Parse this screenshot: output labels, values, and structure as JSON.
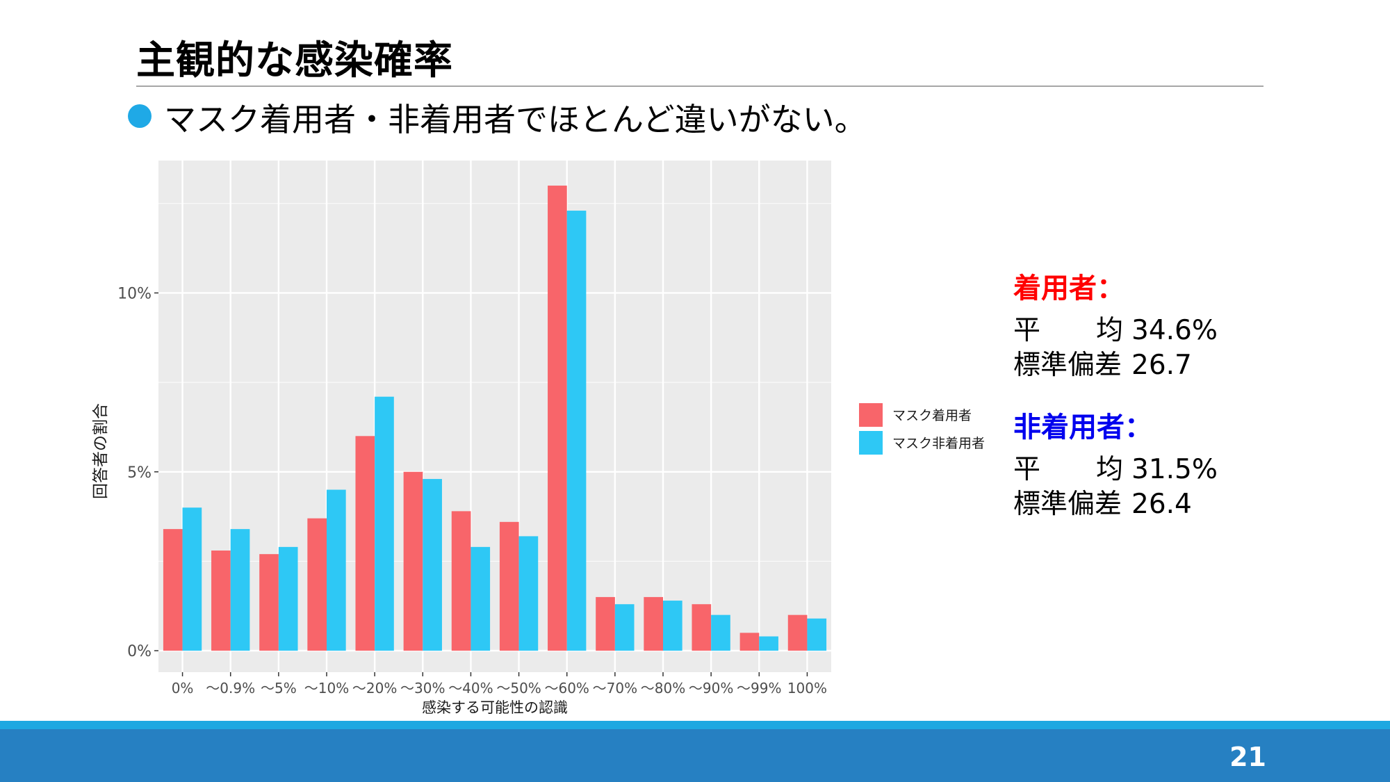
{
  "slide": {
    "title": "主観的な感染確率",
    "bullet": "マスク着用者・非着用者でほとんど違いがない。",
    "page_number": "21"
  },
  "colors": {
    "wearer": "#f8656a",
    "non_wearer": "#2ec8f5",
    "panel_bg": "#ebebeb",
    "footer": "#2680c2",
    "accent": "#1ea8e1",
    "wearer_heading": "#ff0000",
    "non_wearer_heading": "#0000ee"
  },
  "stats": {
    "wearer": {
      "heading": "着用者：",
      "mean_label_1": "平",
      "mean_label_2": "均",
      "mean_value": "34.6%",
      "sd_label": "標準偏差",
      "sd_value": "26.7"
    },
    "non_wearer": {
      "heading": "非着用者：",
      "mean_label_1": "平",
      "mean_label_2": "均",
      "mean_value": "31.5%",
      "sd_label": "標準偏差",
      "sd_value": "26.4"
    }
  },
  "chart_data": {
    "type": "bar",
    "title": "",
    "xlabel": "感染する可能性の認識",
    "ylabel": "回答者の割合",
    "categories": [
      "0%",
      "～0.9%",
      "～5%",
      "～10%",
      "～20%",
      "～30%",
      "～40%",
      "～50%",
      "～60%",
      "～70%",
      "～80%",
      "～90%",
      "～99%",
      "100%"
    ],
    "series": [
      {
        "name": "マスク着用者",
        "values": [
          3.4,
          2.8,
          2.7,
          3.7,
          6.0,
          5.0,
          3.9,
          3.6,
          13.0,
          1.5,
          1.5,
          1.3,
          0.5,
          1.0
        ]
      },
      {
        "name": "マスク非着用者",
        "values": [
          4.0,
          3.4,
          2.9,
          4.5,
          7.1,
          4.8,
          2.9,
          3.2,
          12.3,
          1.3,
          1.4,
          1.0,
          0.4,
          0.9
        ]
      }
    ],
    "ylim": [
      -0.6,
      13.7
    ],
    "yticks": [
      0,
      5,
      10
    ],
    "ytick_labels": [
      "0%",
      "5%",
      "10%"
    ],
    "grid": true,
    "legend_position": "right"
  }
}
